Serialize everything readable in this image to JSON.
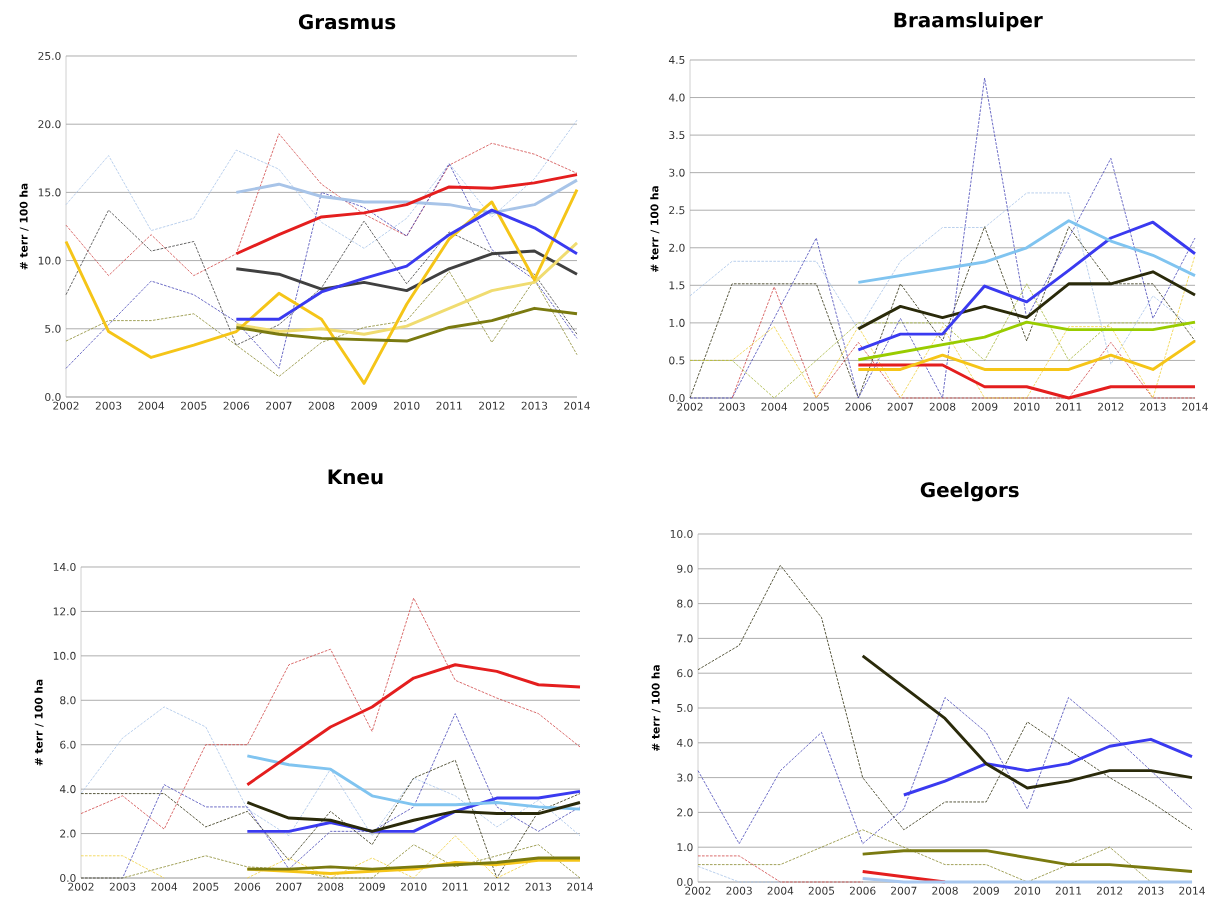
{
  "chart_data": [
    {
      "type": "line",
      "title": "Grasmus",
      "ylabel": "# terr / 100 ha",
      "grid": "y",
      "categories": [
        "2002",
        "2003",
        "2004",
        "2005",
        "2006",
        "2007",
        "2008",
        "2009",
        "2010",
        "2011",
        "2012",
        "2013",
        "2014"
      ],
      "ylim": [
        0,
        25
      ],
      "yticks": [
        {
          "value": 0,
          "label": "0.0"
        },
        {
          "value": 5,
          "label": "5.0"
        },
        {
          "value": 10,
          "label": "10.0"
        },
        {
          "value": 15,
          "label": "15.0"
        },
        {
          "value": 20,
          "label": "20.0"
        },
        {
          "value": 25,
          "label": "25.0"
        }
      ],
      "series": [
        {
          "color": "#d04848",
          "line_style": "dashed",
          "values": [
            12.6,
            8.9,
            11.9,
            8.9,
            10.5,
            19.3,
            15.6,
            13.4,
            11.8,
            17.0,
            18.6,
            17.8,
            16.4
          ]
        },
        {
          "color": "#a8c4e8",
          "line_style": "dashed",
          "values": [
            14.1,
            17.7,
            12.2,
            13.1,
            18.1,
            16.7,
            12.8,
            10.9,
            13.1,
            17.1,
            13.2,
            16.0,
            20.3
          ]
        },
        {
          "color": "#404040",
          "line_style": "dashed",
          "values": [
            7.5,
            13.7,
            10.7,
            11.4,
            3.8,
            5.3,
            8.0,
            12.9,
            8.3,
            12.1,
            10.6,
            9.0,
            4.6
          ]
        },
        {
          "color": "#4848b8",
          "line_style": "dashed",
          "values": [
            2.1,
            5.3,
            8.5,
            7.5,
            5.5,
            2.1,
            15.0,
            13.9,
            11.8,
            17.1,
            10.8,
            8.6,
            4.3
          ]
        },
        {
          "color": "#8a8a30",
          "line_style": "dashed",
          "values": [
            4.1,
            5.6,
            5.6,
            6.1,
            3.8,
            1.5,
            4.0,
            5.1,
            5.6,
            9.2,
            4.0,
            8.6,
            3.1
          ]
        },
        {
          "color": "#a8c4e8",
          "line_style": "solid",
          "values": [
            null,
            null,
            null,
            null,
            15.0,
            15.6,
            14.7,
            14.3,
            14.3,
            14.1,
            13.5,
            14.1,
            15.9
          ]
        },
        {
          "color": "#404040",
          "line_style": "solid",
          "values": [
            null,
            null,
            null,
            null,
            9.4,
            9.0,
            7.9,
            8.4,
            7.8,
            9.4,
            10.5,
            10.7,
            9.0
          ]
        },
        {
          "color": "#f0dc70",
          "line_style": "solid",
          "values": [
            null,
            null,
            null,
            null,
            5.3,
            4.8,
            5.0,
            4.6,
            5.2,
            6.5,
            7.8,
            8.4,
            11.3
          ]
        },
        {
          "color": "#f5c518",
          "line_style": "solid",
          "values": [
            11.4,
            4.8,
            2.9,
            3.8,
            4.8,
            7.6,
            5.7,
            1.0,
            6.8,
            11.6,
            14.3,
            8.6,
            15.2
          ]
        },
        {
          "color": "#7a7a10",
          "line_style": "solid",
          "values": [
            null,
            null,
            null,
            null,
            5.1,
            4.6,
            4.3,
            4.2,
            4.1,
            5.1,
            5.6,
            6.5,
            6.1
          ]
        },
        {
          "color": "#3a3af0",
          "line_style": "solid",
          "values": [
            null,
            null,
            null,
            null,
            5.7,
            5.7,
            7.7,
            8.7,
            9.6,
            11.9,
            13.7,
            12.4,
            10.5
          ]
        },
        {
          "color": "#e41e1e",
          "line_style": "solid",
          "values": [
            null,
            null,
            null,
            null,
            10.5,
            11.9,
            13.2,
            13.5,
            14.1,
            15.4,
            15.3,
            15.7,
            16.3
          ]
        }
      ]
    },
    {
      "type": "line",
      "title": "Braamsluiper",
      "ylabel": "# terr / 100 ha",
      "grid": "y",
      "categories": [
        "2002",
        "2003",
        "2004",
        "2005",
        "2006",
        "2007",
        "2008",
        "2009",
        "2010",
        "2011",
        "2012",
        "2013",
        "2014"
      ],
      "ylim": [
        0,
        4.5
      ],
      "yticks": [
        {
          "value": 0,
          "label": "0.0"
        },
        {
          "value": 0.5,
          "label": "0.5"
        },
        {
          "value": 1,
          "label": "1.0"
        },
        {
          "value": 1.5,
          "label": "1.5"
        },
        {
          "value": 2,
          "label": "2.0"
        },
        {
          "value": 2.5,
          "label": "2.5"
        },
        {
          "value": 3,
          "label": "3.0"
        },
        {
          "value": 3.5,
          "label": "3.5"
        },
        {
          "value": 4,
          "label": "4.0"
        },
        {
          "value": 4.5,
          "label": "4.5"
        }
      ],
      "series": [
        {
          "color": "#a8c4e8",
          "line_style": "dashed",
          "values": [
            1.36,
            1.82,
            1.82,
            1.82,
            0.91,
            1.82,
            2.27,
            2.27,
            2.73,
            2.73,
            0.45,
            1.36,
            0.91
          ]
        },
        {
          "color": "#303010",
          "line_style": "dashed",
          "values": [
            0,
            1.52,
            1.52,
            1.52,
            0,
            1.52,
            0.76,
            2.28,
            0.76,
            2.28,
            1.52,
            1.52,
            0.76
          ]
        },
        {
          "color": "#4848b8",
          "line_style": "dashed",
          "values": [
            0,
            0,
            1.06,
            2.13,
            0,
            1.06,
            0,
            4.26,
            1.06,
            2.13,
            3.19,
            1.06,
            2.13
          ]
        },
        {
          "color": "#d04848",
          "line_style": "dashed",
          "values": [
            null,
            0,
            1.48,
            0,
            0.74,
            0,
            0,
            0,
            0,
            0,
            0.74,
            0,
            0
          ]
        },
        {
          "color": "#f0d040",
          "line_style": "dashed",
          "values": [
            0.5,
            0.5,
            0.95,
            0,
            0.95,
            0,
            0.95,
            0,
            0,
            0.95,
            0.95,
            0,
            1.9
          ]
        },
        {
          "color": "#a8b840",
          "line_style": "dashed",
          "values": [
            0.5,
            0.5,
            0,
            0.5,
            1.0,
            1.0,
            1.0,
            0.5,
            1.52,
            0.5,
            1.0,
            1.0,
            1.0
          ]
        },
        {
          "color": "#e41e1e",
          "line_style": "solid",
          "values": [
            null,
            null,
            null,
            null,
            0.44,
            0.44,
            0.44,
            0.15,
            0.15,
            0,
            0.15,
            0.15,
            0.15
          ]
        },
        {
          "color": "#f5c518",
          "line_style": "solid",
          "values": [
            null,
            null,
            null,
            null,
            0.38,
            0.38,
            0.57,
            0.38,
            0.38,
            0.38,
            0.57,
            0.38,
            0.76
          ]
        },
        {
          "color": "#99cc00",
          "line_style": "solid",
          "values": [
            null,
            null,
            null,
            null,
            0.51,
            0.61,
            0.71,
            0.81,
            1.01,
            0.91,
            0.91,
            0.91,
            1.01
          ]
        },
        {
          "color": "#2a2a0a",
          "line_style": "solid",
          "values": [
            null,
            null,
            null,
            null,
            0.92,
            1.22,
            1.07,
            1.22,
            1.07,
            1.52,
            1.52,
            1.68,
            1.37
          ]
        },
        {
          "color": "#3a3af0",
          "line_style": "solid",
          "values": [
            null,
            null,
            null,
            null,
            0.64,
            0.85,
            0.85,
            1.49,
            1.28,
            1.7,
            2.13,
            2.34,
            1.92
          ]
        },
        {
          "color": "#80c4f0",
          "line_style": "solid",
          "values": [
            null,
            null,
            null,
            null,
            1.54,
            1.63,
            1.72,
            1.81,
            2.0,
            2.36,
            2.09,
            1.9,
            1.63
          ]
        }
      ]
    },
    {
      "type": "line",
      "title": "Kneu",
      "ylabel": "# terr / 100 ha",
      "grid": "y",
      "categories": [
        "2002",
        "2003",
        "2004",
        "2005",
        "2006",
        "2007",
        "2008",
        "2009",
        "2010",
        "2011",
        "2012",
        "2013",
        "2014"
      ],
      "ylim": [
        0,
        14
      ],
      "yticks": [
        {
          "value": 0,
          "label": "0.0"
        },
        {
          "value": 2,
          "label": "2.0"
        },
        {
          "value": 4,
          "label": "4.0"
        },
        {
          "value": 6,
          "label": "6.0"
        },
        {
          "value": 8,
          "label": "8.0"
        },
        {
          "value": 10,
          "label": "10.0"
        },
        {
          "value": 12,
          "label": "12.0"
        },
        {
          "value": 14,
          "label": "14.0"
        }
      ],
      "series": [
        {
          "color": "#d04848",
          "line_style": "dashed",
          "values": [
            2.9,
            3.7,
            2.2,
            6.0,
            6.0,
            9.6,
            10.3,
            6.6,
            12.6,
            8.9,
            8.1,
            7.4,
            5.9
          ]
        },
        {
          "color": "#a8c4e8",
          "line_style": "dashed",
          "values": [
            3.8,
            6.3,
            7.7,
            6.8,
            3.1,
            1.9,
            4.9,
            1.9,
            4.5,
            3.7,
            2.3,
            3.5,
            1.9
          ]
        },
        {
          "color": "#4848b8",
          "line_style": "dashed",
          "values": [
            0,
            0,
            4.2,
            3.2,
            3.2,
            0.4,
            2.1,
            2.1,
            3.2,
            7.4,
            3.2,
            2.1,
            3.2
          ]
        },
        {
          "color": "#303010",
          "line_style": "dashed",
          "values": [
            3.8,
            3.8,
            3.8,
            2.3,
            3.0,
            0.8,
            3.0,
            1.5,
            4.5,
            5.3,
            0,
            3.0,
            3.8
          ]
        },
        {
          "color": "#8a8a30",
          "line_style": "dashed",
          "values": [
            0,
            0,
            0.5,
            1.0,
            0.5,
            0.4,
            0,
            0,
            1.5,
            0.5,
            1.0,
            1.5,
            0
          ]
        },
        {
          "color": "#f0d040",
          "line_style": "dashed",
          "values": [
            1.0,
            1.0,
            0,
            null,
            0,
            0.9,
            0,
            0.9,
            0,
            1.9,
            0,
            0.9,
            0.9
          ]
        },
        {
          "color": "#f5c518",
          "line_style": "solid",
          "values": [
            null,
            null,
            null,
            null,
            0.4,
            0.3,
            0.2,
            0.3,
            0.4,
            0.7,
            0.6,
            0.8,
            0.8
          ]
        },
        {
          "color": "#7a7a10",
          "line_style": "solid",
          "values": [
            null,
            null,
            null,
            null,
            0.4,
            0.4,
            0.5,
            0.4,
            0.5,
            0.6,
            0.7,
            0.9,
            0.9
          ]
        },
        {
          "color": "#3a3af0",
          "line_style": "solid",
          "values": [
            null,
            null,
            null,
            null,
            2.1,
            2.1,
            2.5,
            2.1,
            2.1,
            3.0,
            3.6,
            3.6,
            3.9
          ]
        },
        {
          "color": "#80c4f0",
          "line_style": "solid",
          "values": [
            null,
            null,
            null,
            null,
            5.5,
            5.1,
            4.9,
            3.7,
            3.3,
            3.3,
            3.4,
            3.2,
            3.1
          ]
        },
        {
          "color": "#2a2a0a",
          "line_style": "solid",
          "values": [
            null,
            null,
            null,
            null,
            3.4,
            2.7,
            2.6,
            2.1,
            2.6,
            3.0,
            2.9,
            2.9,
            3.4
          ]
        },
        {
          "color": "#e41e1e",
          "line_style": "solid",
          "values": [
            null,
            null,
            null,
            null,
            4.2,
            5.5,
            6.8,
            7.7,
            9.0,
            9.6,
            9.3,
            8.7,
            8.6
          ]
        }
      ]
    },
    {
      "type": "line",
      "title": "Geelgors",
      "ylabel": "# terr / 100 ha",
      "grid": "y",
      "categories": [
        "2002",
        "2003",
        "2004",
        "2005",
        "2006",
        "2007",
        "2008",
        "2009",
        "2010",
        "2011",
        "2012",
        "2013",
        "2014"
      ],
      "ylim": [
        0,
        10
      ],
      "yticks": [
        {
          "value": 0,
          "label": "0.0"
        },
        {
          "value": 1,
          "label": "1.0"
        },
        {
          "value": 2,
          "label": "2.0"
        },
        {
          "value": 3,
          "label": "3.0"
        },
        {
          "value": 4,
          "label": "4.0"
        },
        {
          "value": 5,
          "label": "5.0"
        },
        {
          "value": 6,
          "label": "6.0"
        },
        {
          "value": 7,
          "label": "7.0"
        },
        {
          "value": 8,
          "label": "8.0"
        },
        {
          "value": 9,
          "label": "9.0"
        },
        {
          "value": 10,
          "label": "10.0"
        }
      ],
      "series": [
        {
          "color": "#303010",
          "line_style": "dashed",
          "values": [
            6.1,
            6.8,
            9.1,
            7.6,
            3.0,
            1.5,
            2.3,
            2.3,
            4.6,
            3.8,
            3.0,
            2.3,
            1.5
          ]
        },
        {
          "color": "#4848b8",
          "line_style": "dashed",
          "values": [
            3.2,
            1.1,
            3.2,
            4.3,
            1.1,
            2.1,
            5.3,
            4.3,
            2.1,
            5.3,
            4.3,
            3.2,
            2.1
          ]
        },
        {
          "color": "#8a8a30",
          "line_style": "dashed",
          "values": [
            0.5,
            0.5,
            0.5,
            1.0,
            1.5,
            1.0,
            0.5,
            0.5,
            0,
            0.5,
            1.0,
            0,
            0
          ]
        },
        {
          "color": "#d04848",
          "line_style": "dashed",
          "values": [
            0.75,
            0.75,
            0,
            0,
            0,
            null,
            null,
            null,
            null,
            null,
            null,
            null,
            null
          ]
        },
        {
          "color": "#a8c4e8",
          "line_style": "dashed",
          "values": [
            0.45,
            0,
            0,
            null,
            null,
            null,
            null,
            null,
            null,
            null,
            null,
            null,
            null
          ]
        },
        {
          "color": "#e41e1e",
          "line_style": "solid",
          "values": [
            null,
            null,
            null,
            null,
            0.3,
            0.15,
            0,
            null,
            null,
            null,
            null,
            null,
            null
          ]
        },
        {
          "color": "#a8c8f0",
          "line_style": "solid",
          "values": [
            null,
            null,
            null,
            null,
            0.1,
            0,
            0,
            0,
            0,
            0,
            0,
            0,
            0
          ]
        },
        {
          "color": "#7a7a10",
          "line_style": "solid",
          "values": [
            null,
            null,
            null,
            null,
            0.8,
            0.9,
            0.9,
            0.9,
            0.7,
            0.5,
            0.5,
            0.4,
            0.3
          ]
        },
        {
          "color": "#3a3af0",
          "line_style": "solid",
          "values": [
            null,
            null,
            null,
            null,
            null,
            2.5,
            2.9,
            3.4,
            3.2,
            3.4,
            3.9,
            4.1,
            3.6
          ]
        },
        {
          "color": "#2a2a0a",
          "line_style": "solid",
          "values": [
            null,
            null,
            null,
            null,
            6.5,
            5.6,
            4.7,
            3.4,
            2.7,
            2.9,
            3.2,
            3.2,
            3.0
          ]
        }
      ]
    }
  ]
}
